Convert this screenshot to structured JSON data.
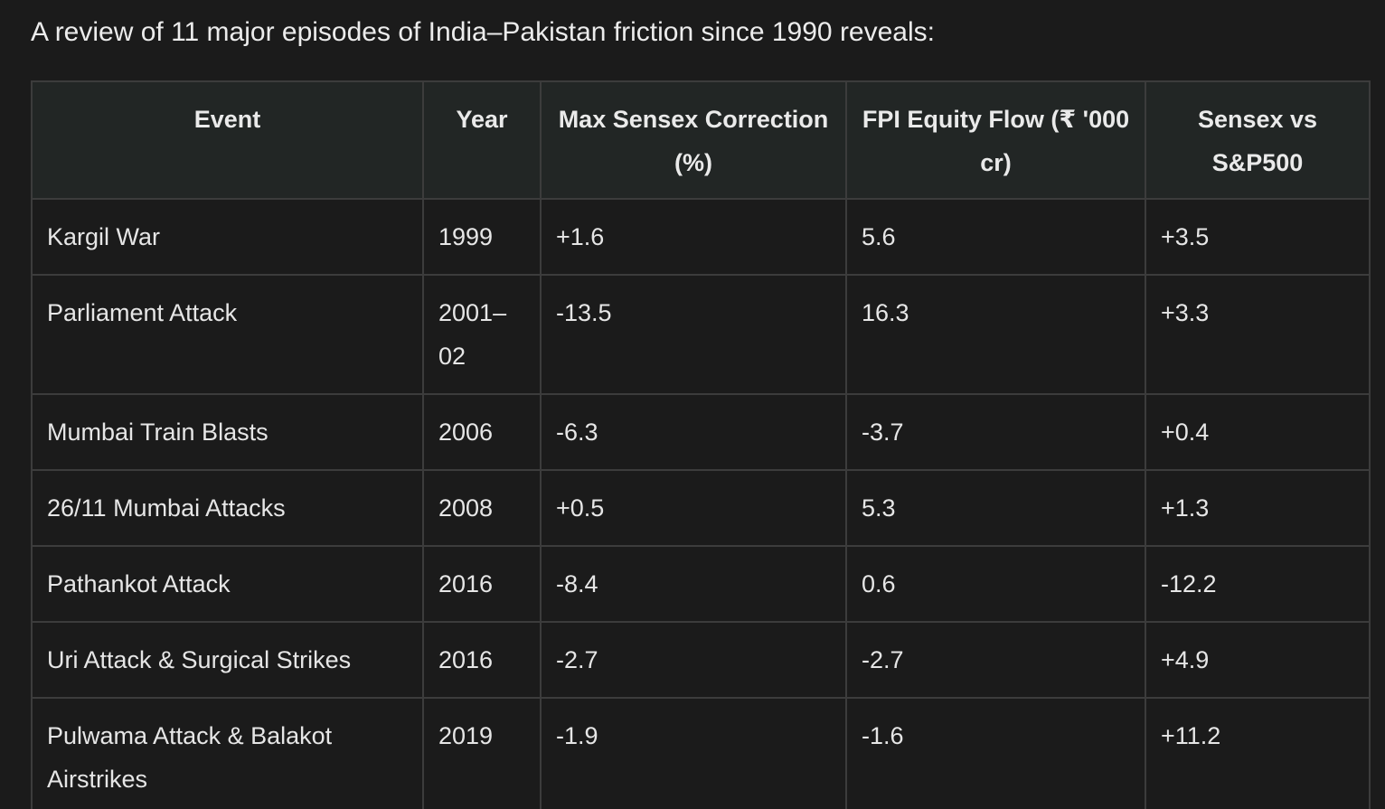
{
  "intro": "A review of 11 major episodes of India–Pakistan friction since 1990 reveals:",
  "table": {
    "headers": {
      "event": "Event",
      "year": "Year",
      "max_correction": "Max Sensex Correction (%)",
      "fpi_flow": "FPI Equity Flow (₹ '000 cr)",
      "sensex_vs_sp500": "Sensex vs S&P500"
    },
    "rows": [
      {
        "event": "Kargil War",
        "year": "1999",
        "max_correction": "+1.6",
        "fpi_flow": "5.6",
        "sensex_vs_sp500": "+3.5"
      },
      {
        "event": "Parliament Attack",
        "year": "2001–02",
        "max_correction": "-13.5",
        "fpi_flow": "16.3",
        "sensex_vs_sp500": "+3.3"
      },
      {
        "event": "Mumbai Train Blasts",
        "year": "2006",
        "max_correction": "-6.3",
        "fpi_flow": "-3.7",
        "sensex_vs_sp500": "+0.4"
      },
      {
        "event": "26/11 Mumbai Attacks",
        "year": "2008",
        "max_correction": "+0.5",
        "fpi_flow": "5.3",
        "sensex_vs_sp500": "+1.3"
      },
      {
        "event": "Pathankot Attack",
        "year": "2016",
        "max_correction": "-8.4",
        "fpi_flow": "0.6",
        "sensex_vs_sp500": "-12.2"
      },
      {
        "event": "Uri Attack & Surgical Strikes",
        "year": "2016",
        "max_correction": "-2.7",
        "fpi_flow": "-2.7",
        "sensex_vs_sp500": "+4.9"
      },
      {
        "event": "Pulwama Attack & Balakot Airstrikes",
        "year": "2019",
        "max_correction": "-1.9",
        "fpi_flow": "-1.6",
        "sensex_vs_sp500": "+11.2"
      }
    ]
  }
}
